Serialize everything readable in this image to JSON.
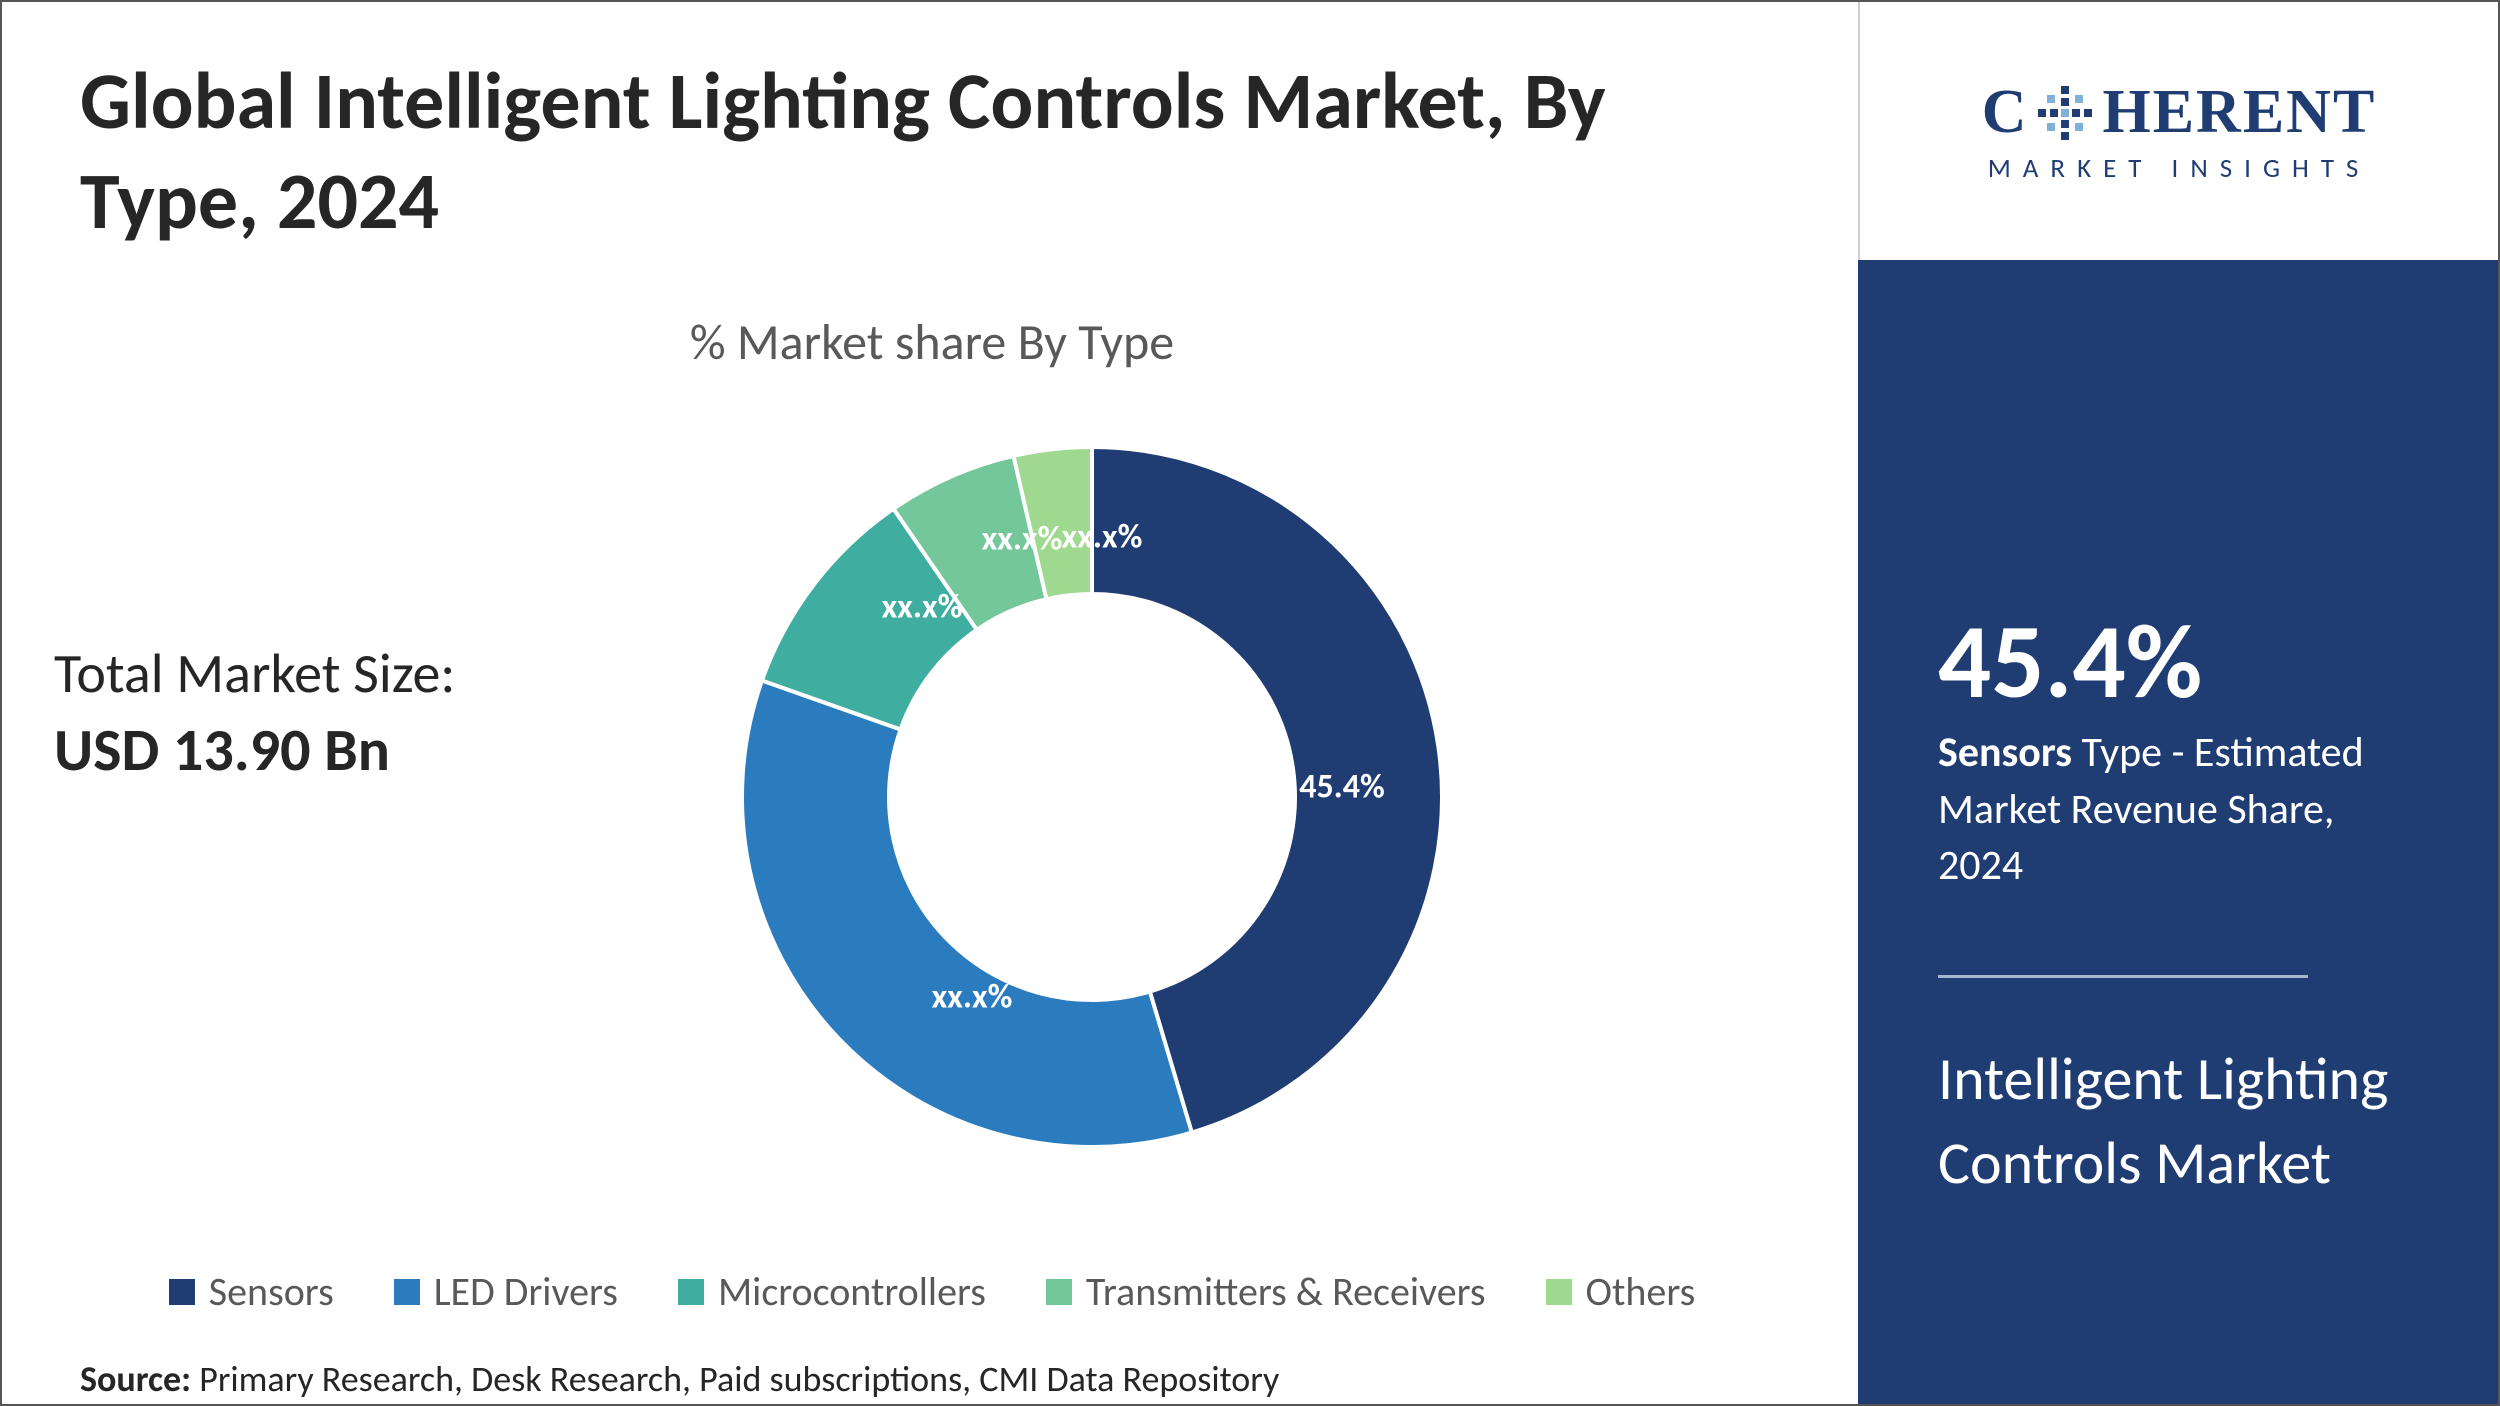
{
  "title": "Global Intelligent Lighting Controls Market, By Type, 2024",
  "total_market": {
    "label": "Total Market Size:",
    "value": "USD 13.90 Bn"
  },
  "chart": {
    "type": "donut",
    "subtitle": "% Market share By Type",
    "inner_radius_pct": 58,
    "background_color": "#ffffff",
    "stroke_color": "#ffffff",
    "stroke_width": 4,
    "label_color": "#ffffff",
    "label_fontsize": 34,
    "series": [
      {
        "name": "Sensors",
        "value": 45.4,
        "label": "45.4%",
        "color": "#1f3c73",
        "label_dx": 250,
        "label_dy": -10
      },
      {
        "name": "LED Drivers",
        "value": 35.0,
        "label": "xx.x%",
        "color": "#2b7bbf",
        "label_dx": -120,
        "label_dy": 200
      },
      {
        "name": "Microcontrollers",
        "value": 10.0,
        "label": "xx.x%",
        "color": "#3faea0",
        "label_dx": -170,
        "label_dy": -190
      },
      {
        "name": "Transmitters & Receivers",
        "value": 6.0,
        "label": "xx.x%",
        "color": "#73c79b",
        "label_dx": -70,
        "label_dy": -258
      },
      {
        "name": "Others",
        "value": 3.6,
        "label": "xx.x%",
        "color": "#9fd88f",
        "label_dx": 10,
        "label_dy": -260
      }
    ],
    "legend_fontsize": 40,
    "legend_color": "#595959"
  },
  "source": {
    "label": "Source:",
    "text": "Primary Research, Desk Research, Paid subscriptions, CMI Data Repository"
  },
  "logo": {
    "main_prefix": "C",
    "main_suffix": "HERENT",
    "sub": "MARKET INSIGHTS",
    "color": "#1f3c73"
  },
  "highlight": {
    "percent": "45.4%",
    "bold_word": "Sensors",
    "rest": " Type - Estimated Market Revenue Share, 2024",
    "market_name": "Intelligent Lighting Controls Market",
    "panel_bg": "#1f3c73",
    "text_color": "#ffffff"
  }
}
